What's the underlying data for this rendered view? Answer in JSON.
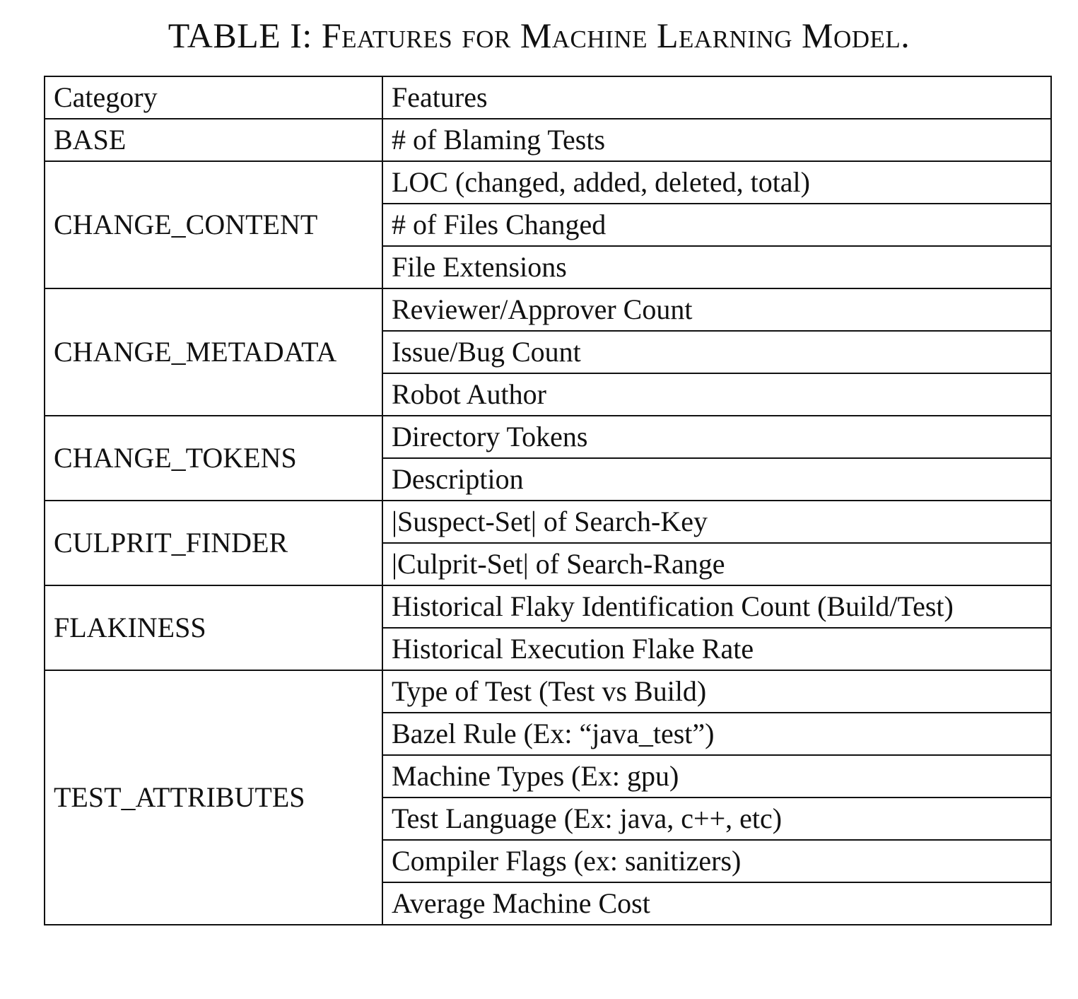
{
  "caption": {
    "label": "TABLE I:",
    "title": "Features for Machine Learning Model."
  },
  "table": {
    "headers": [
      "Category",
      "Features"
    ],
    "groups": [
      {
        "category": "BASE",
        "features": [
          "# of Blaming Tests"
        ]
      },
      {
        "category": "CHANGE_CONTENT",
        "features": [
          "LOC (changed, added, deleted, total)",
          "# of Files Changed",
          "File Extensions"
        ]
      },
      {
        "category": "CHANGE_METADATA",
        "features": [
          "Reviewer/Approver Count",
          "Issue/Bug Count",
          "Robot Author"
        ]
      },
      {
        "category": "CHANGE_TOKENS",
        "features": [
          "Directory Tokens",
          "Description"
        ]
      },
      {
        "category": "CULPRIT_FINDER",
        "features": [
          "|Suspect-Set| of Search-Key",
          "|Culprit-Set| of Search-Range"
        ]
      },
      {
        "category": "FLAKINESS",
        "features": [
          "Historical Flaky Identification Count (Build/Test)",
          "Historical Execution Flake Rate"
        ]
      },
      {
        "category": "TEST_ATTRIBUTES",
        "features": [
          "Type of Test (Test vs Build)",
          "Bazel Rule (Ex: “java_test”)",
          "Machine Types (Ex: gpu)",
          "Test Language (Ex: java, c++, etc)",
          "Compiler Flags (ex: sanitizers)",
          "Average Machine Cost"
        ]
      }
    ]
  }
}
